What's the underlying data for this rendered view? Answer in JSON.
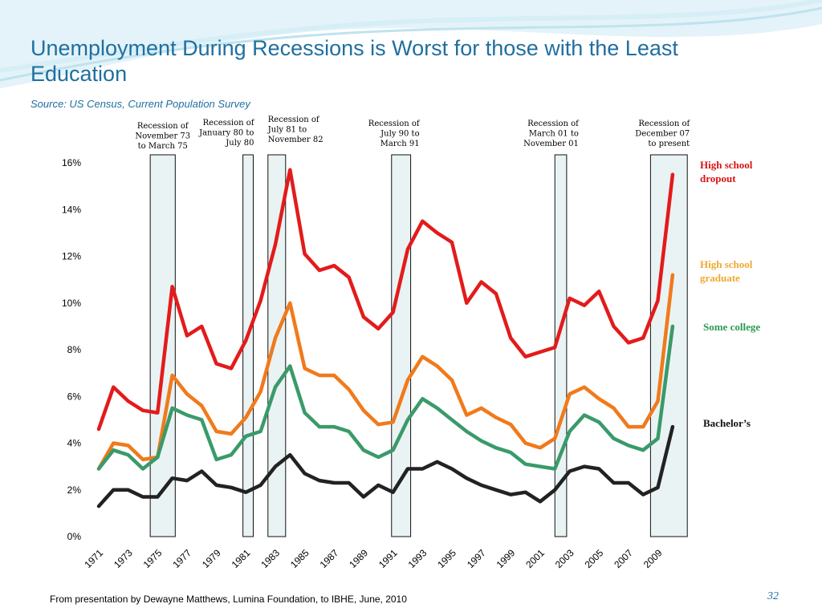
{
  "chart_data": {
    "type": "line",
    "title": "Unemployment During Recessions is Worst for those with the Least Education",
    "subtitle": "Source: US Census, Current Population Survey",
    "footer": "From presentation by Dewayne Matthews, Lumina Foundation, to IBHE, June, 2010",
    "page_number": "32",
    "categories": [
      "1971",
      null,
      "1973",
      null,
      "1975",
      null,
      "1977",
      null,
      "1979",
      null,
      "1981",
      null,
      "1983",
      null,
      "1985",
      null,
      "1987",
      null,
      "1989",
      null,
      "1991",
      null,
      "1993",
      null,
      "1995",
      null,
      "1997",
      null,
      "1999",
      null,
      "2001",
      null,
      "2003",
      null,
      "2005",
      null,
      "2007",
      null,
      "2009",
      null
    ],
    "ylim": [
      0,
      16
    ],
    "yticks": [
      {
        "value": 0,
        "label": "0%"
      },
      {
        "value": 2,
        "label": "2%"
      },
      {
        "value": 4,
        "label": "4%"
      },
      {
        "value": 6,
        "label": "6%"
      },
      {
        "value": 8,
        "label": "8%"
      },
      {
        "value": 10,
        "label": "10%"
      },
      {
        "value": 12,
        "label": "12%"
      },
      {
        "value": 14,
        "label": "14%"
      },
      {
        "value": 16,
        "label": "16%"
      }
    ],
    "series": [
      {
        "name": "High school dropout",
        "color": "#e31b1b",
        "label_color": "#d81515",
        "values": [
          4.6,
          6.4,
          5.8,
          5.4,
          5.3,
          10.7,
          8.6,
          9.0,
          7.4,
          7.2,
          8.4,
          10.1,
          12.5,
          15.7,
          12.1,
          11.4,
          11.6,
          11.1,
          9.4,
          8.9,
          9.6,
          12.3,
          13.5,
          13.0,
          12.6,
          10.0,
          10.9,
          10.4,
          8.5,
          7.7,
          7.9,
          8.1,
          10.2,
          9.9,
          10.5,
          9.0,
          8.3,
          8.5,
          10.1,
          15.5
        ]
      },
      {
        "name": "High school graduate",
        "color": "#f07a1c",
        "label_color": "#f0a830",
        "values": [
          2.9,
          4.0,
          3.9,
          3.3,
          3.4,
          6.9,
          6.1,
          5.6,
          4.5,
          4.4,
          5.1,
          6.2,
          8.5,
          10.0,
          7.2,
          6.9,
          6.9,
          6.3,
          5.4,
          4.8,
          4.9,
          6.7,
          7.7,
          7.3,
          6.7,
          5.2,
          5.5,
          5.1,
          4.8,
          4.0,
          3.8,
          4.2,
          6.1,
          6.4,
          5.9,
          5.5,
          4.7,
          4.7,
          5.8,
          11.2
        ]
      },
      {
        "name": "Some college",
        "color": "#3a9a6a",
        "label_color": "#2a9a50",
        "values": [
          2.9,
          3.7,
          3.5,
          2.9,
          3.4,
          5.5,
          5.2,
          5.0,
          3.3,
          3.5,
          4.3,
          4.5,
          6.4,
          7.3,
          5.3,
          4.7,
          4.7,
          4.5,
          3.7,
          3.4,
          3.7,
          5.0,
          5.9,
          5.5,
          5.0,
          4.5,
          4.1,
          3.8,
          3.6,
          3.1,
          3.0,
          2.9,
          4.5,
          5.2,
          4.9,
          4.2,
          3.9,
          3.7,
          4.2,
          9.0
        ]
      },
      {
        "name": "Bachelor’s",
        "color": "#222222",
        "label_color": "#111111",
        "values": [
          1.3,
          2.0,
          2.0,
          1.7,
          1.7,
          2.5,
          2.4,
          2.8,
          2.2,
          2.1,
          1.9,
          2.2,
          3.0,
          3.5,
          2.7,
          2.4,
          2.3,
          2.3,
          1.7,
          2.2,
          1.9,
          2.9,
          2.9,
          3.2,
          2.9,
          2.5,
          2.2,
          2.0,
          1.8,
          1.9,
          1.5,
          2.0,
          2.8,
          3.0,
          2.9,
          2.3,
          2.3,
          1.8,
          2.1,
          4.7
        ]
      }
    ],
    "recessions": [
      {
        "label": [
          "Recession of",
          "November 73",
          "to March 75"
        ],
        "start": 1974.5,
        "end": 1976.2
      },
      {
        "label": [
          "Recession of",
          "January 80 to",
          "July 80"
        ],
        "start": 1980.8,
        "end": 1981.5
      },
      {
        "label": [
          "Recession of",
          "July 81 to",
          "November 82"
        ],
        "start": 1982.5,
        "end": 1983.7
      },
      {
        "label": [
          "Recession of",
          "July 90 to",
          "March 91"
        ],
        "start": 1990.9,
        "end": 1992.2
      },
      {
        "label": [
          "Recession of",
          "March 01 to",
          "November 01"
        ],
        "start": 2002.0,
        "end": 2002.8
      },
      {
        "label": [
          "Recession of",
          "December 07",
          "to present"
        ],
        "start": 2008.5,
        "end": 2011.0
      }
    ]
  }
}
